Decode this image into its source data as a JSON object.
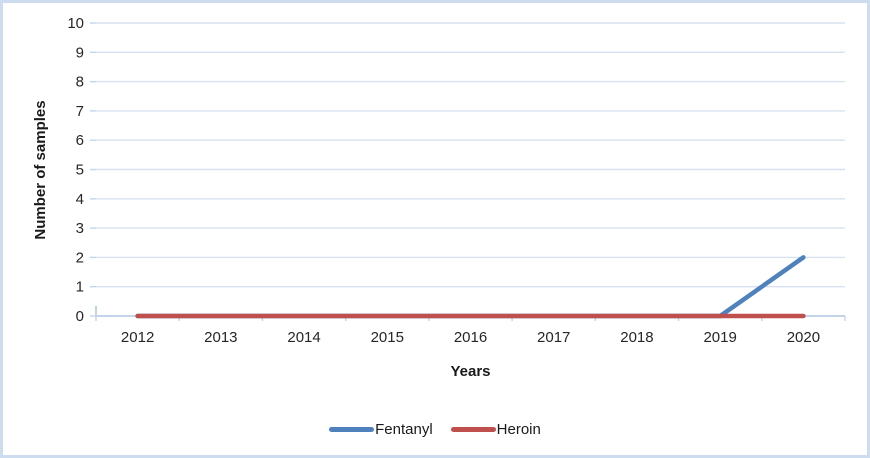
{
  "chart_data": {
    "type": "line",
    "categories": [
      "2012",
      "2013",
      "2014",
      "2015",
      "2016",
      "2017",
      "2018",
      "2019",
      "2020"
    ],
    "series": [
      {
        "name": "Fentanyl",
        "color": "#4F81BD",
        "values": [
          0,
          0,
          0,
          0,
          0,
          0,
          0,
          0,
          2
        ]
      },
      {
        "name": "Heroin",
        "color": "#C0504D",
        "values": [
          0,
          0,
          0,
          0,
          0,
          0,
          0,
          0,
          0
        ]
      }
    ],
    "title": "",
    "xlabel": "Years",
    "ylabel": "Number of samples",
    "ylim": [
      0,
      10
    ],
    "yticks": [
      0,
      1,
      2,
      3,
      4,
      5,
      6,
      7,
      8,
      9,
      10
    ],
    "grid": "horizontal",
    "legend_position": "bottom"
  },
  "colors": {
    "gridline": "#D6E2F1",
    "axis_line": "#C3D4E9",
    "frame_border": "#CDDCEF",
    "tick_text": "#262626",
    "fentanyl_line": "#4F81BD",
    "heroin_line": "#C0504D"
  }
}
